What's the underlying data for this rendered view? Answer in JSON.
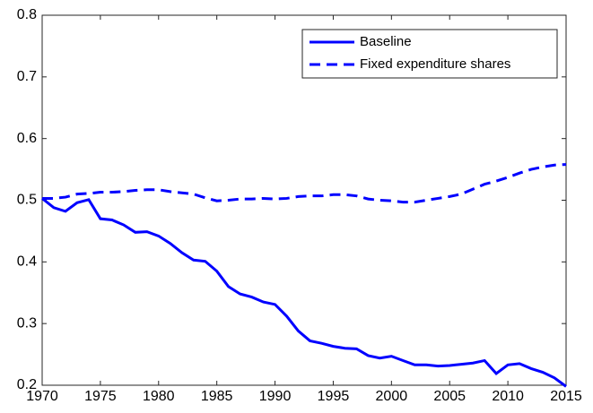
{
  "chart_data": {
    "type": "line",
    "x": [
      1970,
      1971,
      1972,
      1973,
      1974,
      1975,
      1976,
      1977,
      1978,
      1979,
      1980,
      1981,
      1982,
      1983,
      1984,
      1985,
      1986,
      1987,
      1988,
      1989,
      1990,
      1991,
      1992,
      1993,
      1994,
      1995,
      1996,
      1997,
      1998,
      1999,
      2000,
      2001,
      2002,
      2003,
      2004,
      2005,
      2006,
      2007,
      2008,
      2009,
      2010,
      2011,
      2012,
      2013,
      2014,
      2015
    ],
    "series": [
      {
        "name": "Baseline",
        "color": "#0000ff",
        "linestyle": "solid",
        "values": [
          0.503,
          0.488,
          0.482,
          0.496,
          0.501,
          0.47,
          0.468,
          0.46,
          0.448,
          0.449,
          0.442,
          0.43,
          0.415,
          0.403,
          0.401,
          0.385,
          0.36,
          0.348,
          0.343,
          0.335,
          0.331,
          0.312,
          0.288,
          0.272,
          0.268,
          0.263,
          0.26,
          0.259,
          0.248,
          0.244,
          0.247,
          0.24,
          0.233,
          0.233,
          0.231,
          0.232,
          0.234,
          0.236,
          0.24,
          0.219,
          0.233,
          0.235,
          0.227,
          0.221,
          0.212,
          0.198
        ]
      },
      {
        "name": "Fixed expenditure shares",
        "color": "#0000ff",
        "linestyle": "dashed",
        "values": [
          0.503,
          0.503,
          0.505,
          0.51,
          0.511,
          0.513,
          0.513,
          0.514,
          0.516,
          0.517,
          0.517,
          0.514,
          0.512,
          0.51,
          0.504,
          0.499,
          0.5,
          0.502,
          0.502,
          0.503,
          0.502,
          0.503,
          0.506,
          0.507,
          0.507,
          0.509,
          0.509,
          0.507,
          0.502,
          0.5,
          0.499,
          0.497,
          0.497,
          0.5,
          0.503,
          0.506,
          0.51,
          0.518,
          0.526,
          0.531,
          0.537,
          0.544,
          0.55,
          0.554,
          0.557,
          0.558
        ]
      }
    ],
    "xlim": [
      1970,
      2015
    ],
    "xticks": [
      1970,
      1975,
      1980,
      1985,
      1990,
      1995,
      2000,
      2005,
      2010,
      2015
    ],
    "ylim": [
      0.2,
      0.8
    ],
    "yticks": [
      0.2,
      0.3,
      0.4,
      0.5,
      0.6,
      0.7,
      0.8
    ],
    "grid": false,
    "legend": "upper right"
  }
}
